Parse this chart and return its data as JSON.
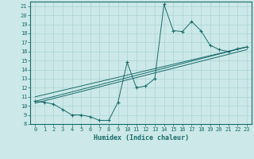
{
  "xlabel": "Humidex (Indice chaleur)",
  "xlim": [
    -0.5,
    23.5
  ],
  "ylim": [
    8,
    21.5
  ],
  "xticks": [
    0,
    1,
    2,
    3,
    4,
    5,
    6,
    7,
    8,
    9,
    10,
    11,
    12,
    13,
    14,
    15,
    16,
    17,
    18,
    19,
    20,
    21,
    22,
    23
  ],
  "yticks": [
    8,
    9,
    10,
    11,
    12,
    13,
    14,
    15,
    16,
    17,
    18,
    19,
    20,
    21
  ],
  "bg_color": "#cce8e8",
  "line_color": "#1a6b6b",
  "line_data_x": [
    0,
    1,
    2,
    3,
    4,
    5,
    6,
    7,
    8,
    9,
    10,
    11,
    12,
    13,
    14,
    15,
    16,
    17,
    18,
    19,
    20,
    21,
    22,
    23
  ],
  "line_data_y": [
    10.5,
    10.4,
    10.2,
    9.6,
    9.0,
    9.0,
    8.8,
    8.4,
    8.4,
    10.4,
    14.8,
    12.0,
    12.2,
    13.0,
    21.2,
    18.3,
    18.2,
    19.3,
    18.3,
    16.7,
    16.2,
    16.0,
    16.3,
    16.5
  ],
  "reg_lines": [
    {
      "x": [
        0,
        23
      ],
      "y": [
        10.5,
        16.5
      ]
    },
    {
      "x": [
        0,
        23
      ],
      "y": [
        10.3,
        16.2
      ]
    },
    {
      "x": [
        0,
        23
      ],
      "y": [
        11.0,
        16.5
      ]
    }
  ],
  "grid_color": "#aad4d4",
  "tick_fontsize": 5.0,
  "xlabel_fontsize": 6.0
}
